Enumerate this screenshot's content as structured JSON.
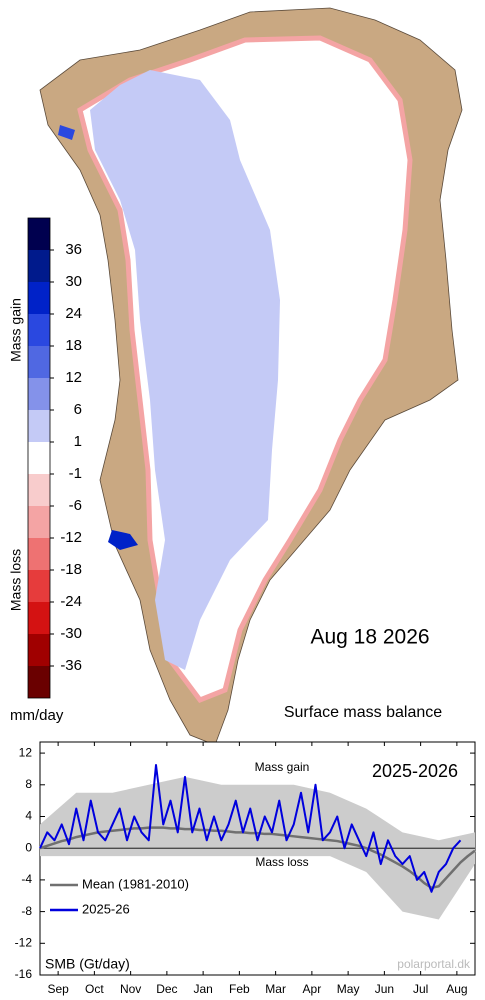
{
  "map": {
    "date": "Aug 18 2026",
    "title": "Surface mass balance",
    "legend": {
      "gain_label": "Mass gain",
      "loss_label": "Mass loss",
      "unit": "mm/day",
      "ticks": [
        36,
        30,
        24,
        18,
        12,
        6,
        1,
        -1,
        -6,
        -12,
        -18,
        -24,
        -30,
        -36
      ],
      "colors": [
        "#00004f",
        "#001a8c",
        "#0022c8",
        "#2a48e0",
        "#5068e2",
        "#8492ea",
        "#c4caf6",
        "#ffffff",
        "#f8cccc",
        "#f4a4a4",
        "#ee7272",
        "#e63c3c",
        "#d41212",
        "#a00000",
        "#6a0000"
      ]
    }
  },
  "chart_data": {
    "type": "line",
    "title": "2025-2026",
    "annotations": [
      "Mass gain",
      "Mass loss"
    ],
    "ylabel": "SMB (Gt/day)",
    "credit": "polarportal.dk",
    "xlim": [
      0,
      12
    ],
    "xticks": [
      {
        "value": 0.5,
        "label": "Sep"
      },
      {
        "value": 1.5,
        "label": "Oct"
      },
      {
        "value": 2.5,
        "label": "Nov"
      },
      {
        "value": 3.5,
        "label": "Dec"
      },
      {
        "value": 4.5,
        "label": "Jan"
      },
      {
        "value": 5.5,
        "label": "Feb"
      },
      {
        "value": 6.5,
        "label": "Mar"
      },
      {
        "value": 7.5,
        "label": "Apr"
      },
      {
        "value": 8.5,
        "label": "May"
      },
      {
        "value": 9.5,
        "label": "Jun"
      },
      {
        "value": 10.5,
        "label": "Jul"
      },
      {
        "value": 11.5,
        "label": "Aug"
      }
    ],
    "ylim": [
      -16,
      13.4
    ],
    "yticks": [
      12,
      8,
      4,
      0,
      -4,
      -8,
      -12,
      -16
    ],
    "band": {
      "color": "#cccccc",
      "x": [
        0,
        1,
        2,
        3,
        4,
        5,
        6,
        7,
        8,
        9,
        10,
        11,
        12
      ],
      "lower": [
        -1,
        -1,
        -1,
        -1,
        -1,
        -1,
        -1,
        -1,
        -1,
        -3,
        -8,
        -9,
        -2
      ],
      "upper": [
        3,
        7,
        7,
        8,
        9,
        8,
        8,
        8,
        7,
        5,
        2,
        1,
        2
      ]
    },
    "series": [
      {
        "name": "Mean (1981-2010)",
        "color": "#707070",
        "x": [
          0,
          0.2,
          0.4,
          0.6,
          0.8,
          1,
          1.2,
          1.4,
          1.6,
          1.8,
          2,
          2.2,
          2.4,
          2.6,
          2.8,
          3,
          3.2,
          3.4,
          3.6,
          3.8,
          4,
          4.2,
          4.4,
          4.6,
          4.8,
          5,
          5.2,
          5.4,
          5.6,
          5.8,
          6,
          6.2,
          6.4,
          6.6,
          6.8,
          7,
          7.2,
          7.4,
          7.6,
          7.8,
          8,
          8.2,
          8.4,
          8.6,
          8.8,
          9,
          9.2,
          9.4,
          9.6,
          9.8,
          10,
          10.2,
          10.4,
          10.6,
          10.8,
          11,
          11.2,
          11.4,
          11.6,
          11.8,
          12
        ],
        "values": [
          0,
          0.3,
          0.6,
          0.9,
          1.1,
          1.4,
          1.6,
          1.8,
          2,
          2.1,
          2.2,
          2.3,
          2.4,
          2.5,
          2.5,
          2.6,
          2.6,
          2.6,
          2.5,
          2.5,
          2.4,
          2.4,
          2.3,
          2.3,
          2.2,
          2.2,
          2.1,
          2,
          2,
          1.9,
          1.9,
          1.8,
          1.8,
          1.7,
          1.6,
          1.5,
          1.4,
          1.3,
          1.2,
          1.1,
          1,
          0.9,
          0.7,
          0.5,
          0.3,
          0,
          -0.4,
          -0.8,
          -1.3,
          -1.8,
          -2.3,
          -2.9,
          -3.6,
          -4.4,
          -5,
          -4.8,
          -3.8,
          -2.8,
          -1.8,
          -1,
          -0.3
        ]
      },
      {
        "name": "2025-26",
        "color": "#0000dd",
        "x": [
          0,
          0.2,
          0.4,
          0.6,
          0.8,
          1,
          1.2,
          1.4,
          1.6,
          1.8,
          2,
          2.2,
          2.4,
          2.6,
          2.8,
          3,
          3.2,
          3.4,
          3.6,
          3.8,
          4,
          4.2,
          4.4,
          4.6,
          4.8,
          5,
          5.2,
          5.4,
          5.6,
          5.8,
          6,
          6.2,
          6.4,
          6.6,
          6.8,
          7,
          7.2,
          7.4,
          7.6,
          7.8,
          8,
          8.2,
          8.4,
          8.6,
          8.8,
          9,
          9.2,
          9.4,
          9.6,
          9.8,
          10,
          10.2,
          10.4,
          10.6,
          10.8,
          11,
          11.2,
          11.4,
          11.6
        ],
        "values": [
          0,
          2,
          1,
          3,
          0.5,
          5,
          1,
          6,
          2,
          1,
          3,
          5,
          1,
          4,
          2,
          1,
          10.5,
          3,
          6,
          2,
          9,
          2,
          5,
          1,
          4,
          1,
          3,
          6,
          2,
          5,
          1,
          4,
          2,
          6,
          1,
          3,
          7,
          2,
          8,
          1,
          2,
          4,
          0,
          3,
          1,
          -1,
          2,
          -2,
          1,
          -1,
          -2,
          -1,
          -4,
          -3,
          -5.5,
          -3,
          -2,
          0,
          1
        ]
      }
    ]
  }
}
